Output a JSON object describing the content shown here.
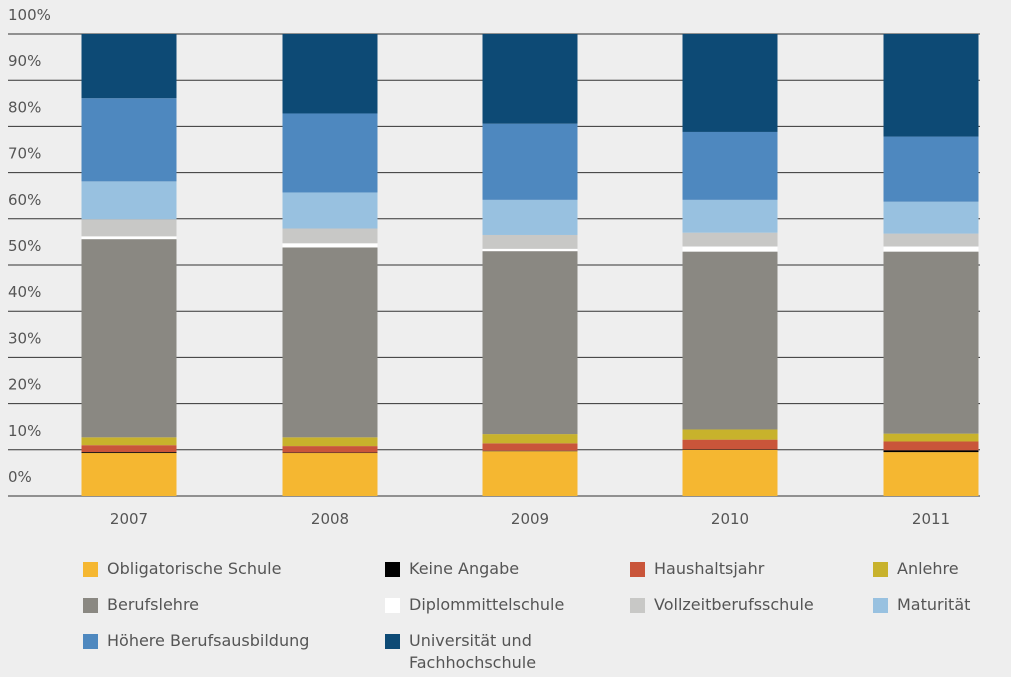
{
  "chart_data": {
    "type": "stacked_bar",
    "categories": [
      "2007",
      "2008",
      "2009",
      "2010",
      "2011"
    ],
    "series": [
      {
        "name": "Obligatorische Schule",
        "color": "#f5b731",
        "values": [
          9.3,
          9.3,
          9.7,
          10.0,
          9.5
        ]
      },
      {
        "name": "Keine Angabe",
        "color": "#000000",
        "values": [
          0.2,
          0.1,
          0.1,
          0.1,
          0.4
        ]
      },
      {
        "name": "Haushaltsjahr",
        "color": "#c9553a",
        "values": [
          1.5,
          1.4,
          1.6,
          2.1,
          1.9
        ]
      },
      {
        "name": "Anlehre",
        "color": "#c8b22c",
        "values": [
          1.7,
          1.9,
          2.0,
          2.2,
          1.7
        ]
      },
      {
        "name": "Berufslehre",
        "color": "#8a8882",
        "values": [
          42.9,
          41.1,
          39.6,
          38.5,
          39.4
        ]
      },
      {
        "name": "Diplommittelschule",
        "color": "#ffffff",
        "values": [
          0.6,
          0.9,
          0.5,
          1.1,
          1.1
        ]
      },
      {
        "name": "Vollzeitberufsschule",
        "color": "#c8c8c6",
        "values": [
          3.7,
          3.2,
          3.0,
          3.0,
          2.8
        ]
      },
      {
        "name": "Maturität",
        "color": "#98c1e0",
        "values": [
          8.2,
          7.8,
          7.6,
          7.1,
          6.9
        ]
      },
      {
        "name": "Höhere Berufsausbildung",
        "color": "#4e88bf",
        "values": [
          18.0,
          17.1,
          16.5,
          14.7,
          14.1
        ]
      },
      {
        "name": "Universität und Fachhochschule",
        "color": "#0d4a75",
        "values": [
          13.9,
          17.2,
          19.4,
          21.2,
          22.2
        ]
      }
    ],
    "ylim": [
      0,
      100
    ],
    "yticks": [
      {
        "value": 0,
        "label": "0%"
      },
      {
        "value": 10,
        "label": "10%"
      },
      {
        "value": 20,
        "label": "20%"
      },
      {
        "value": 30,
        "label": "30%"
      },
      {
        "value": 40,
        "label": "40%"
      },
      {
        "value": 50,
        "label": "50%"
      },
      {
        "value": 60,
        "label": "60%"
      },
      {
        "value": 70,
        "label": "70%"
      },
      {
        "value": 80,
        "label": "80%"
      },
      {
        "value": 90,
        "label": "90%"
      },
      {
        "value": 100,
        "label": "100%"
      }
    ],
    "grid": true
  }
}
